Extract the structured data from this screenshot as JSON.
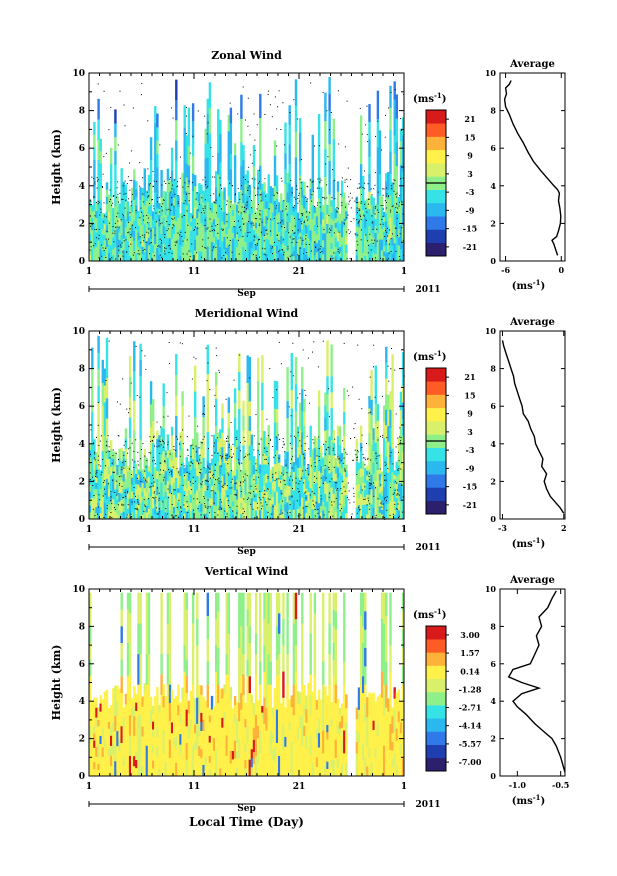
{
  "chart_data": [
    {
      "type": "heatmap",
      "title": "Zonal Wind",
      "ylabel": "Height (km)",
      "ylim": [
        0,
        10
      ],
      "yticks": [
        0,
        2,
        4,
        6,
        8,
        10
      ],
      "xticks": [
        "1",
        "11",
        "21",
        "1"
      ],
      "month_label": "Sep",
      "year_label": "2011",
      "colorbar": {
        "unit": "(ms",
        "unit_exp": "-1",
        "unit_close": ")",
        "ticks": [
          "21",
          "15",
          "9",
          "3",
          "-3",
          "-9",
          "-15",
          "-21"
        ],
        "range": [
          -24,
          24
        ]
      },
      "note": "",
      "profile": {
        "title": "Average",
        "xlabel": "(ms",
        "xlabel_exp": "-1",
        "xlabel_close": ")",
        "xticks": [
          "-6",
          "0"
        ],
        "xtick_values": [
          -6,
          0
        ],
        "xlim": [
          -6.6,
          0.4
        ],
        "yticks": [
          "0",
          "2",
          "4",
          "6",
          "8",
          "10"
        ],
        "ylim": [
          0,
          10
        ],
        "points": [
          [
            -0.4,
            0.3
          ],
          [
            -0.6,
            0.6
          ],
          [
            -0.8,
            0.9
          ],
          [
            -1.0,
            1.1
          ],
          [
            -0.5,
            1.3
          ],
          [
            -0.3,
            1.6
          ],
          [
            -0.1,
            2.0
          ],
          [
            -0.05,
            2.4
          ],
          [
            -0.15,
            2.8
          ],
          [
            -0.3,
            3.2
          ],
          [
            -0.2,
            3.6
          ],
          [
            -0.4,
            3.8
          ],
          [
            -0.8,
            4.0
          ],
          [
            -1.5,
            4.4
          ],
          [
            -2.2,
            4.8
          ],
          [
            -3.0,
            5.3
          ],
          [
            -3.6,
            5.8
          ],
          [
            -4.1,
            6.3
          ],
          [
            -4.7,
            6.8
          ],
          [
            -5.2,
            7.3
          ],
          [
            -5.6,
            7.8
          ],
          [
            -6.0,
            8.2
          ],
          [
            -6.1,
            8.6
          ],
          [
            -5.9,
            8.9
          ],
          [
            -6.0,
            9.2
          ],
          [
            -5.6,
            9.4
          ],
          [
            -5.4,
            9.6
          ]
        ]
      }
    },
    {
      "type": "heatmap",
      "title": "Meridional Wind",
      "ylabel": "Height (km)",
      "ylim": [
        0,
        10
      ],
      "yticks": [
        0,
        2,
        4,
        6,
        8,
        10
      ],
      "xticks": [
        "1",
        "11",
        "21",
        "1"
      ],
      "month_label": "Sep",
      "year_label": "2011",
      "colorbar": {
        "unit": "(ms",
        "unit_exp": "-1",
        "unit_close": ")",
        "ticks": [
          "21",
          "15",
          "9",
          "3",
          "-3",
          "-9",
          "-15",
          "-21"
        ],
        "range": [
          -24,
          24
        ]
      },
      "note": "",
      "profile": {
        "title": "Average",
        "xlabel": "(ms",
        "xlabel_exp": "-1",
        "xlabel_close": ")",
        "xticks": [
          "-3",
          "2"
        ],
        "xtick_values": [
          -3,
          2
        ],
        "xlim": [
          -3.2,
          2.1
        ],
        "yticks": [
          "0",
          "2",
          "4",
          "6",
          "8",
          "10"
        ],
        "ylim": [
          0,
          10
        ],
        "points": [
          [
            2.0,
            0.3
          ],
          [
            1.7,
            0.6
          ],
          [
            1.3,
            0.9
          ],
          [
            0.9,
            1.2
          ],
          [
            0.6,
            1.6
          ],
          [
            0.4,
            2.0
          ],
          [
            0.6,
            2.4
          ],
          [
            0.2,
            2.8
          ],
          [
            0.3,
            3.2
          ],
          [
            0.0,
            3.6
          ],
          [
            -0.3,
            4.0
          ],
          [
            -0.4,
            4.4
          ],
          [
            -0.7,
            4.8
          ],
          [
            -0.9,
            5.2
          ],
          [
            -1.3,
            5.6
          ],
          [
            -1.4,
            6.0
          ],
          [
            -1.6,
            6.4
          ],
          [
            -1.8,
            6.8
          ],
          [
            -2.0,
            7.2
          ],
          [
            -2.1,
            7.6
          ],
          [
            -2.3,
            8.0
          ],
          [
            -2.5,
            8.4
          ],
          [
            -2.7,
            8.8
          ],
          [
            -2.9,
            9.2
          ],
          [
            -3.0,
            9.5
          ]
        ]
      }
    },
    {
      "type": "heatmap",
      "title": "Vertical Wind",
      "ylabel": "Height (km)",
      "ylim": [
        0,
        10
      ],
      "yticks": [
        0,
        2,
        4,
        6,
        8,
        10
      ],
      "xticks": [
        "1",
        "11",
        "21",
        "1"
      ],
      "month_label": "Sep",
      "year_label": "2011",
      "xlabel": "Local Time (Day)",
      "colorbar": {
        "unit": "(ms",
        "unit_exp": "-1",
        "unit_close": ")",
        "ticks": [
          "3.00",
          "1.57",
          "0.14",
          "-1.28",
          "-2.71",
          "-4.14",
          "-5.57",
          "-7.00"
        ],
        "range": [
          -7.7,
          3.7
        ]
      },
      "note": "",
      "profile": {
        "title": "Average",
        "xlabel": "(ms",
        "xlabel_exp": "-1",
        "xlabel_close": ")",
        "xticks": [
          "-1.0",
          "-0.5"
        ],
        "xtick_values": [
          -1.0,
          -0.5
        ],
        "xlim": [
          -1.2,
          -0.45
        ],
        "yticks": [
          "0",
          "2",
          "4",
          "6",
          "8",
          "10"
        ],
        "ylim": [
          0,
          10
        ],
        "points": [
          [
            -0.45,
            0.2
          ],
          [
            -0.5,
            1.0
          ],
          [
            -0.55,
            1.6
          ],
          [
            -0.6,
            2.0
          ],
          [
            -0.7,
            2.4
          ],
          [
            -0.8,
            2.8
          ],
          [
            -0.9,
            3.3
          ],
          [
            -1.0,
            3.7
          ],
          [
            -1.05,
            4.0
          ],
          [
            -0.95,
            4.4
          ],
          [
            -0.75,
            4.7
          ],
          [
            -0.95,
            5.0
          ],
          [
            -1.1,
            5.3
          ],
          [
            -1.05,
            5.7
          ],
          [
            -0.85,
            6.0
          ],
          [
            -0.8,
            6.5
          ],
          [
            -0.75,
            7.0
          ],
          [
            -0.78,
            7.5
          ],
          [
            -0.72,
            8.0
          ],
          [
            -0.75,
            8.5
          ],
          [
            -0.65,
            9.0
          ],
          [
            -0.6,
            9.5
          ],
          [
            -0.55,
            9.9
          ]
        ]
      }
    }
  ]
}
